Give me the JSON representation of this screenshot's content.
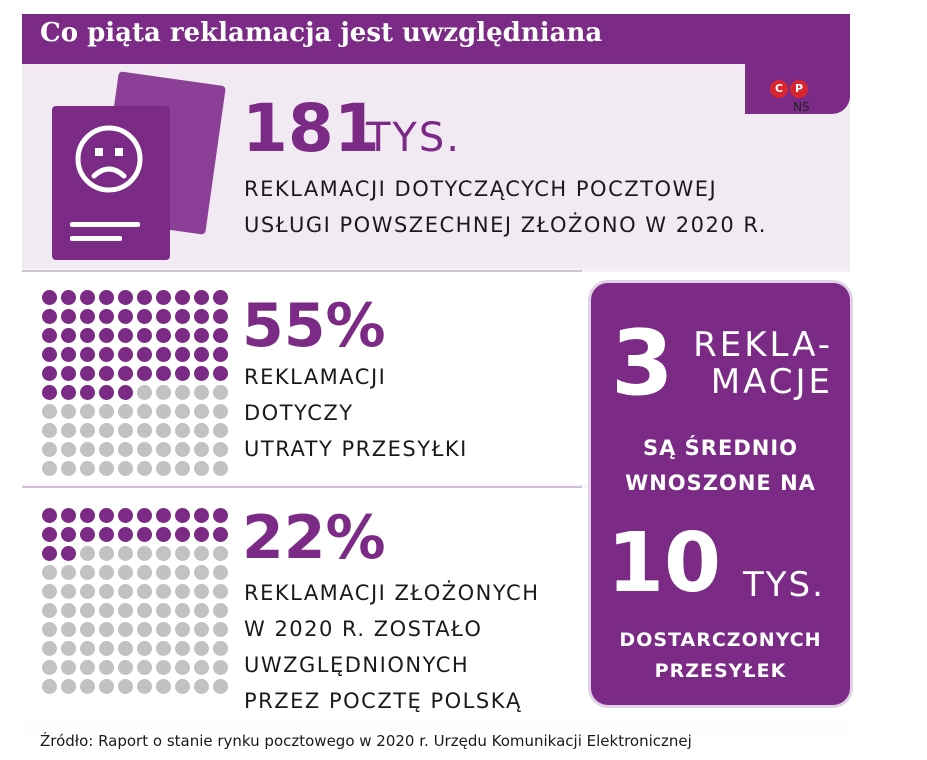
{
  "title": "Co piąta reklamacja jest uwzględniana",
  "logo": {
    "c_letter": "C",
    "p_letter": "P",
    "initials": "NS"
  },
  "colors": {
    "accent": "#7b2a86",
    "accent_light": "#8c3f96",
    "dot_inactive": "#c2c2c5",
    "logo_red": "#d7262f"
  },
  "icons": {
    "document": "sad-face-document-icon"
  },
  "stat1": {
    "value": "181",
    "unit": "TYS.",
    "line1": "REKLAMACJI DOTYCZĄCYCH POCZTOWEJ",
    "line2": "USŁUGI POWSZECHNEJ ZŁOŻONO W 2020 R."
  },
  "stat2": {
    "value": "55%",
    "filled_dots": 55,
    "total_dots": 100,
    "line1": "REKLAMACJI",
    "line2": "DOTYCZY",
    "line3": "UTRATY PRZESYŁKI"
  },
  "stat3": {
    "value": "22%",
    "filled_dots": 22,
    "total_dots": 100,
    "line1": "REKLAMACJI ZŁOŻONYCH",
    "line2": "W 2020 R. ZOSTAŁO",
    "line3": "UWZGLĘDNIONYCH",
    "line4": "PRZEZ POCZTĘ POLSKĄ"
  },
  "callout": {
    "value_top": "3",
    "unit_top_1": "REKLA-",
    "unit_top_2": "MACJE",
    "mid_1": "SĄ ŚREDNIO",
    "mid_2": "WNOSZONE NA",
    "value_bottom": "10",
    "unit_bottom": "TYS.",
    "bot_1": "DOSTARCZONYCH",
    "bot_2": "PRZESYŁEK"
  },
  "source": "Źródło: Raport o stanie rynku pocztowego w 2020 r. Urzędu Komunikacji Elektronicznej"
}
